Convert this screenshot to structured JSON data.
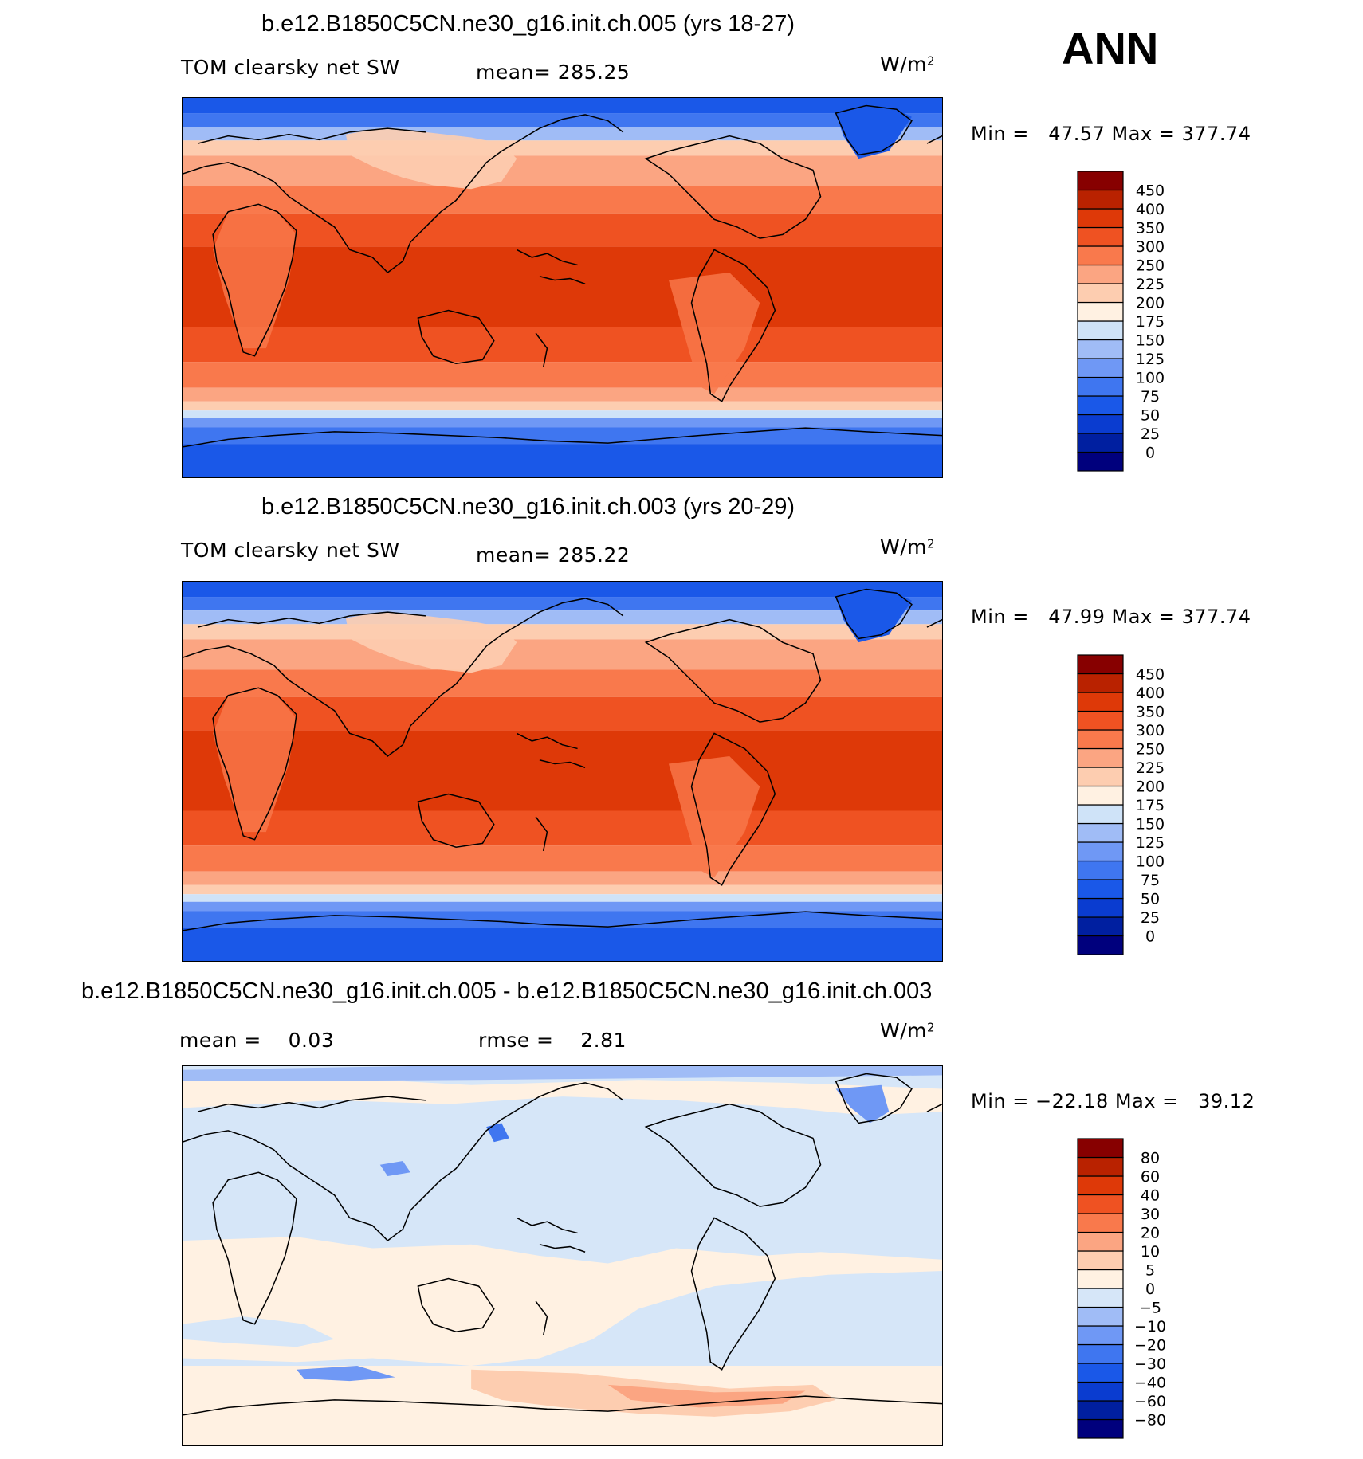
{
  "season": "ANN",
  "units_base": "W/m",
  "units_sup": "2",
  "panels": [
    {
      "title": "b.e12.B1850C5CN.ne30_g16.init.ch.005 (yrs 18-27)",
      "left_label": "TOM clearsky net SW",
      "mean_label": "mean= 285.25",
      "minmax": "Min =   47.57 Max = 377.74"
    },
    {
      "title": "b.e12.B1850C5CN.ne30_g16.init.ch.003 (yrs 20-29)",
      "left_label": "TOM clearsky net SW",
      "mean_label": "mean= 285.22",
      "minmax": "Min =   47.99 Max = 377.74"
    },
    {
      "title": "b.e12.B1850C5CN.ne30_g16.init.ch.005 - b.e12.B1850C5CN.ne30_g16.init.ch.003",
      "left_label": "mean =    0.03",
      "mean_label": "rmse =    2.81",
      "minmax": "Min = −22.18 Max =   39.12"
    }
  ],
  "chart_data": [
    {
      "type": "heatmap",
      "title": "b.e12.B1850C5CN.ne30_g16.init.ch.005 (yrs 18-27)",
      "variable": "TOM clearsky net SW",
      "units": "W/m2",
      "mean": 285.25,
      "min": 47.57,
      "max": 377.74,
      "colorbar_levels": [
        "0",
        "25",
        "50",
        "75",
        "100",
        "125",
        "150",
        "175",
        "200",
        "225",
        "250",
        "300",
        "350",
        "400",
        "450"
      ],
      "colorbar_colors": [
        "#00007d",
        "#001fa0",
        "#0a3cd0",
        "#1a58e8",
        "#3f76f0",
        "#6f98f5",
        "#a0bcf6",
        "#cfe3f8",
        "#fff1e2",
        "#fdcdb0",
        "#fba582",
        "#f9794c",
        "#ef5222",
        "#de3908",
        "#b92200",
        "#870000"
      ]
    },
    {
      "type": "heatmap",
      "title": "b.e12.B1850C5CN.ne30_g16.init.ch.003 (yrs 20-29)",
      "variable": "TOM clearsky net SW",
      "units": "W/m2",
      "mean": 285.22,
      "min": 47.99,
      "max": 377.74,
      "colorbar_levels": [
        "0",
        "25",
        "50",
        "75",
        "100",
        "125",
        "150",
        "175",
        "200",
        "225",
        "250",
        "300",
        "350",
        "400",
        "450"
      ],
      "colorbar_colors": [
        "#00007d",
        "#001fa0",
        "#0a3cd0",
        "#1a58e8",
        "#3f76f0",
        "#6f98f5",
        "#a0bcf6",
        "#cfe3f8",
        "#fff1e2",
        "#fdcdb0",
        "#fba582",
        "#f9794c",
        "#ef5222",
        "#de3908",
        "#b92200",
        "#870000"
      ]
    },
    {
      "type": "heatmap",
      "title": "b.e12.B1850C5CN.ne30_g16.init.ch.005 - b.e12.B1850C5CN.ne30_g16.init.ch.003",
      "units": "W/m2",
      "mean": 0.03,
      "rmse": 2.81,
      "min": -22.18,
      "max": 39.12,
      "colorbar_levels": [
        "−80",
        "−60",
        "−40",
        "−30",
        "−20",
        "−10",
        "−5",
        "0",
        "5",
        "10",
        "20",
        "30",
        "40",
        "60",
        "80"
      ],
      "colorbar_colors": [
        "#00007d",
        "#001fa0",
        "#0a3cd0",
        "#1a58e8",
        "#3f76f0",
        "#6f98f5",
        "#a0bcf6",
        "#d6e6f8",
        "#fff1e2",
        "#fdcdb0",
        "#fba582",
        "#f9794c",
        "#ef5222",
        "#de3908",
        "#b92200",
        "#870000"
      ]
    }
  ]
}
